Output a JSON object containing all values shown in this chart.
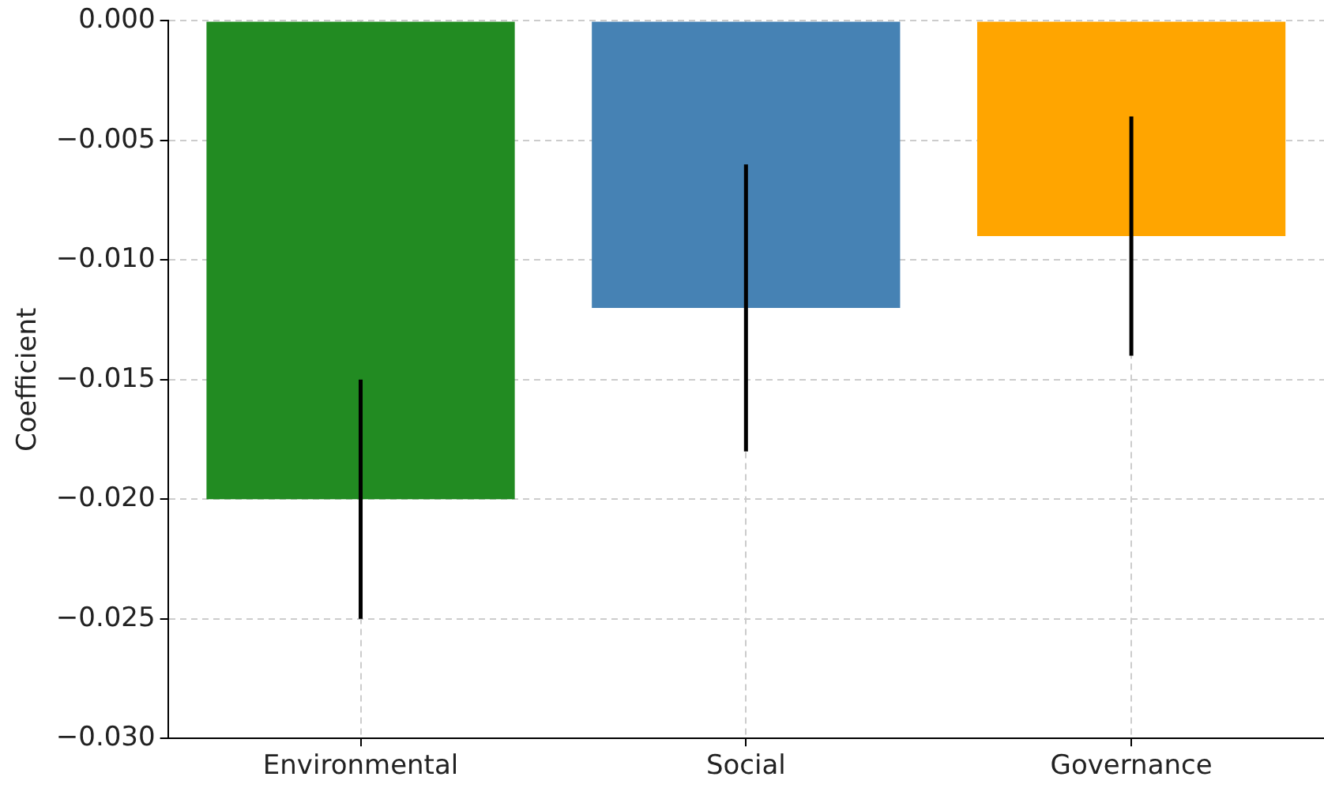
{
  "chart_data": {
    "type": "bar",
    "ylabel": "Coefficient",
    "categories": [
      "Environmental",
      "Social",
      "Governance"
    ],
    "values": [
      -0.02,
      -0.012,
      -0.009
    ],
    "colors": [
      "#228b22",
      "#4682b4",
      "#ffa500"
    ],
    "errors": [
      0.005,
      0.006,
      0.005
    ],
    "ylim": [
      -0.03,
      0
    ],
    "yticks": [
      {
        "value": 0,
        "label": "0.000"
      },
      {
        "value": -0.005,
        "label": "−0.005"
      },
      {
        "value": -0.01,
        "label": "−0.010"
      },
      {
        "value": -0.015,
        "label": "−0.015"
      },
      {
        "value": -0.02,
        "label": "−0.020"
      },
      {
        "value": -0.025,
        "label": "−0.025"
      },
      {
        "value": -0.03,
        "label": "−0.030"
      }
    ],
    "grid": true
  }
}
